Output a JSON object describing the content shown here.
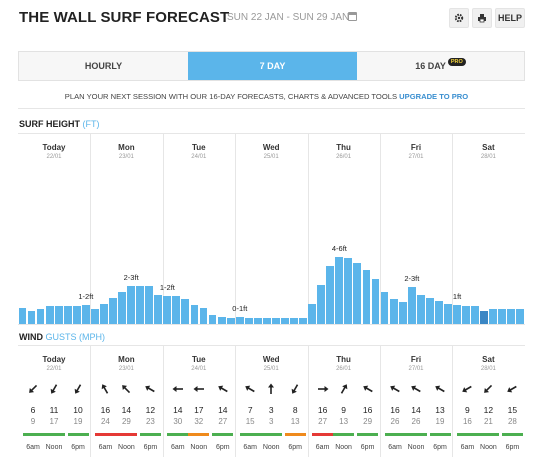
{
  "header": {
    "title": "THE WALL SURF FORECAST",
    "date_range": "SUN 22 JAN - SUN 29 JAN",
    "settings_icon": "gear-icon",
    "print_icon": "printer-icon",
    "help_label": "HELP"
  },
  "tabs": [
    {
      "label": "HOURLY",
      "active": false
    },
    {
      "label": "7 DAY",
      "active": true
    },
    {
      "label": "16 DAY",
      "active": false,
      "badge": "PRO"
    }
  ],
  "promo": {
    "text": "PLAN YOUR NEXT SESSION WITH OUR 16-DAY FORECASTS, CHARTS & ADVANCED TOOLS ",
    "link": "UPGRADE TO PRO"
  },
  "surf": {
    "title": "SURF HEIGHT",
    "unit": "(FT)"
  },
  "wind": {
    "title": "WIND",
    "unit": "GUSTS (MPH)"
  },
  "days": [
    {
      "name": "Today",
      "date": "22/01",
      "wave": "1-2ft"
    },
    {
      "name": "Mon",
      "date": "23/01",
      "wave": "2-3ft"
    },
    {
      "name": "Tue",
      "date": "24/01",
      "wave": "1-2ft"
    },
    {
      "name": "Wed",
      "date": "25/01",
      "wave": "0-1ft"
    },
    {
      "name": "Thu",
      "date": "26/01",
      "wave": "4-6ft"
    },
    {
      "name": "Fri",
      "date": "27/01",
      "wave": "2-3ft"
    },
    {
      "name": "Sat",
      "date": "28/01",
      "wave": "1ft"
    }
  ],
  "chart_data": {
    "type": "bar",
    "title": "SURF HEIGHT",
    "ylabel": "(FT)",
    "values": [
      1.1,
      0.9,
      1.0,
      1.2,
      1.2,
      1.2,
      1.2,
      1.3,
      1.0,
      1.4,
      1.8,
      2.2,
      2.6,
      2.6,
      2.6,
      2.0,
      1.9,
      1.9,
      1.7,
      1.3,
      1.1,
      0.6,
      0.5,
      0.4,
      0.5,
      0.4,
      0.4,
      0.4,
      0.4,
      0.4,
      0.4,
      0.4,
      1.4,
      2.7,
      4.0,
      4.6,
      4.5,
      4.2,
      3.7,
      3.1,
      2.2,
      1.7,
      1.5,
      2.5,
      2.0,
      1.8,
      1.6,
      1.4,
      1.3,
      1.2,
      1.2,
      0.9,
      1.0,
      1.0,
      1.0,
      1.0
    ],
    "selected_index": 51,
    "ylim": [
      0,
      6
    ]
  },
  "times": [
    "6am",
    "Noon",
    "6pm"
  ],
  "wind_data": [
    [
      {
        "s": "6",
        "g": "9",
        "dir": 225,
        "c": "#4caf50"
      },
      {
        "s": "11",
        "g": "17",
        "dir": 210,
        "c": "#4caf50"
      },
      {
        "s": "10",
        "g": "19",
        "dir": 210,
        "c": "#4caf50"
      }
    ],
    [
      {
        "s": "16",
        "g": "24",
        "dir": 330,
        "c": "#e53935"
      },
      {
        "s": "14",
        "g": "29",
        "dir": 315,
        "c": "#e53935"
      },
      {
        "s": "12",
        "g": "23",
        "dir": 300,
        "c": "#4caf50"
      }
    ],
    [
      {
        "s": "14",
        "g": "30",
        "dir": 270,
        "c": "#4caf50"
      },
      {
        "s": "17",
        "g": "32",
        "dir": 270,
        "c": "#ef8a1c"
      },
      {
        "s": "14",
        "g": "27",
        "dir": 300,
        "c": "#4caf50"
      }
    ],
    [
      {
        "s": "7",
        "g": "15",
        "dir": 300,
        "c": "#4caf50"
      },
      {
        "s": "3",
        "g": "3",
        "dir": 0,
        "c": "#4caf50"
      },
      {
        "s": "8",
        "g": "13",
        "dir": 210,
        "c": "#ef8a1c"
      }
    ],
    [
      {
        "s": "16",
        "g": "27",
        "dir": 90,
        "c": "#e53935"
      },
      {
        "s": "9",
        "g": "13",
        "dir": 30,
        "c": "#4caf50"
      },
      {
        "s": "16",
        "g": "29",
        "dir": 300,
        "c": "#4caf50"
      }
    ],
    [
      {
        "s": "16",
        "g": "26",
        "dir": 300,
        "c": "#4caf50"
      },
      {
        "s": "14",
        "g": "26",
        "dir": 300,
        "c": "#4caf50"
      },
      {
        "s": "13",
        "g": "19",
        "dir": 300,
        "c": "#4caf50"
      }
    ],
    [
      {
        "s": "9",
        "g": "16",
        "dir": 240,
        "c": "#4caf50"
      },
      {
        "s": "12",
        "g": "21",
        "dir": 225,
        "c": "#4caf50"
      },
      {
        "s": "15",
        "g": "28",
        "dir": 240,
        "c": "#4caf50"
      }
    ]
  ]
}
